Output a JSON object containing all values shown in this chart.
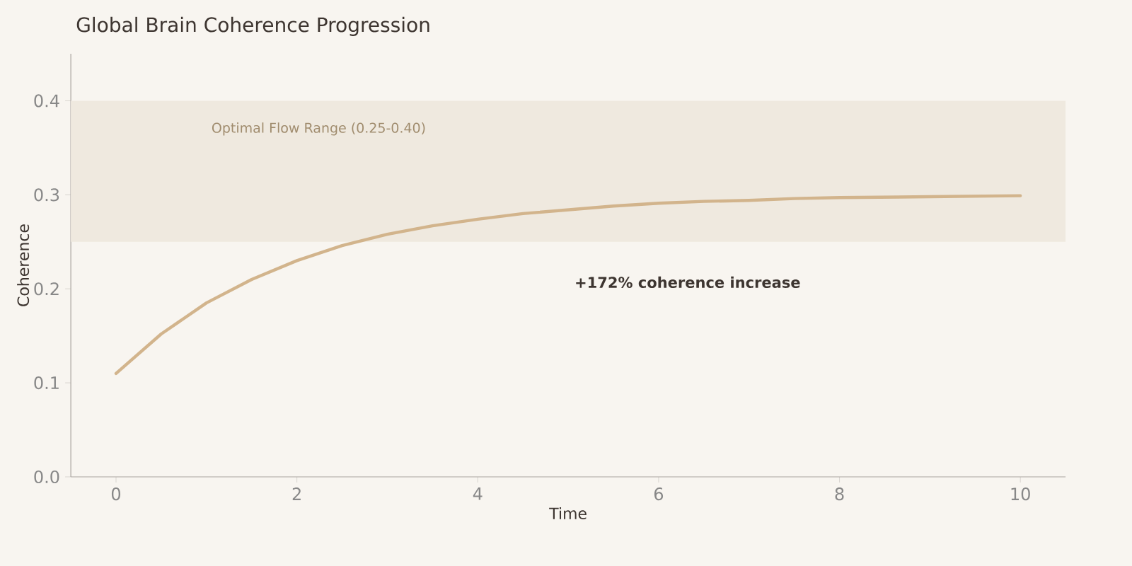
{
  "chart_data": {
    "type": "line",
    "title": "Global Brain Coherence Progression",
    "xlabel": "Time",
    "ylabel": "Coherence",
    "x": [
      0,
      0.5,
      1,
      1.5,
      2,
      2.5,
      3,
      3.5,
      4,
      4.5,
      5,
      5.5,
      6,
      6.5,
      7,
      7.5,
      8,
      9,
      10
    ],
    "series": [
      {
        "color": "#d2b48c",
        "values": [
          0.11,
          0.152,
          0.185,
          0.21,
          0.23,
          0.246,
          0.258,
          0.267,
          0.274,
          0.28,
          0.284,
          0.288,
          0.291,
          0.293,
          0.294,
          0.296,
          0.297,
          0.298,
          0.299
        ]
      }
    ],
    "xlim": [
      -0.5,
      10.5
    ],
    "ylim": [
      0,
      0.45
    ],
    "xticks": [
      0,
      2,
      4,
      6,
      8,
      10
    ],
    "yticks": [
      {
        "value": 0,
        "label": "0.0"
      },
      0.1,
      0.2,
      0.3,
      0.4
    ],
    "bands": [
      {
        "axis": "y",
        "from": 0.25,
        "to": 0.4,
        "label": "Optimal Flow Range (0.25-0.40)",
        "color": "#efe9df"
      }
    ],
    "annotations": [
      "+172% coherence increase"
    ]
  }
}
